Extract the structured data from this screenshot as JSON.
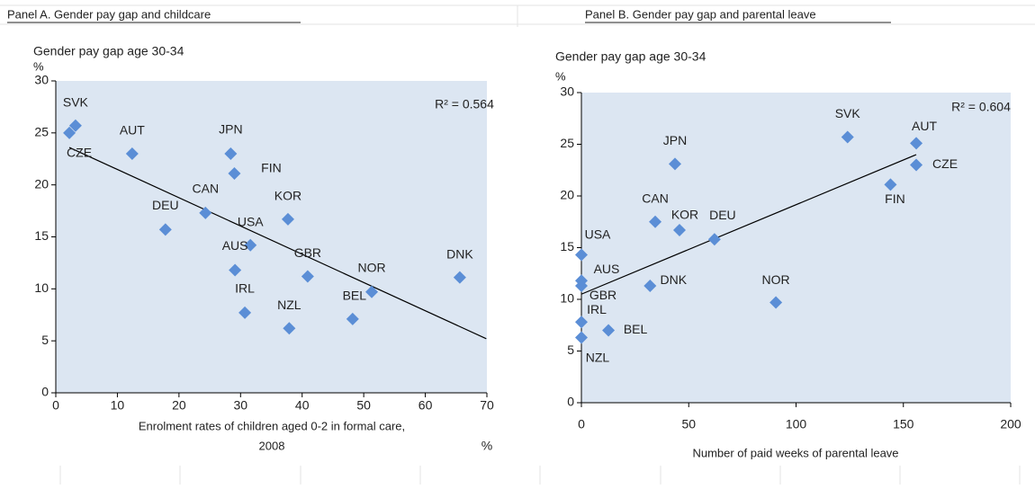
{
  "chart_data": [
    {
      "type": "scatter",
      "title": "Panel A. Gender pay gap and childcare",
      "y_label": "Gender pay gap age 30-34",
      "y_unit": "%",
      "x_label": [
        "Enrolment rates of children aged 0-2 in formal care,",
        "2008"
      ],
      "x_unit": "%",
      "annotation": "R² = 0.564",
      "labels": [
        "SVK",
        "CZE",
        "AUT",
        "JPN",
        "FIN",
        "CAN",
        "KOR",
        "DEU",
        "USA",
        "AUS",
        "GBR",
        "NOR",
        "DNK",
        "IRL",
        "BEL",
        "NZL"
      ],
      "x": [
        3.2,
        2.2,
        12.4,
        28.4,
        29.0,
        24.3,
        37.7,
        17.8,
        31.6,
        29.1,
        40.9,
        51.3,
        65.6,
        30.7,
        48.2,
        37.9
      ],
      "values": [
        25.7,
        25.0,
        23.0,
        23.0,
        21.1,
        17.3,
        16.7,
        15.7,
        14.2,
        11.8,
        11.2,
        9.7,
        11.1,
        7.7,
        7.1,
        6.2
      ],
      "color": "#5b8ed6",
      "trendline": {
        "x": [
          2.2,
          69.9
        ],
        "y": [
          23.6,
          5.2
        ]
      },
      "xlim": [
        0,
        70
      ],
      "xticks": [
        0,
        10,
        20,
        30,
        40,
        50,
        60,
        70
      ],
      "ylim": [
        0,
        30
      ],
      "yticks": [
        0,
        5,
        10,
        15,
        20,
        25,
        30
      ]
    },
    {
      "type": "scatter",
      "title": "Panel B. Gender pay gap and parental leave",
      "y_label": "Gender pay gap age 30-34",
      "y_unit": "%",
      "x_label": [
        "Number of paid weeks of parental leave"
      ],
      "annotation": "R² = 0.604",
      "labels": [
        "SVK",
        "AUT",
        "CZE",
        "FIN",
        "JPN",
        "CAN",
        "KOR",
        "DEU",
        "USA",
        "AUS",
        "GBR",
        "DNK",
        "NOR",
        "IRL",
        "BEL",
        "NZL"
      ],
      "x": [
        124,
        156,
        156,
        144,
        43.6,
        34.4,
        45.7,
        62,
        0,
        0,
        0,
        32,
        90.6,
        0,
        12.6,
        0
      ],
      "values": [
        25.7,
        25.1,
        23.0,
        21.1,
        23.1,
        17.5,
        16.7,
        15.8,
        14.3,
        11.8,
        11.3,
        11.3,
        9.7,
        7.8,
        7.0,
        6.3
      ],
      "color": "#5b8ed6",
      "trendline": {
        "x": [
          0,
          156
        ],
        "y": [
          10.5,
          24.0
        ]
      },
      "xlim": [
        0,
        200
      ],
      "xticks": [
        0,
        50,
        100,
        150,
        200
      ],
      "ylim": [
        0,
        30
      ],
      "yticks": [
        0,
        5,
        10,
        15,
        20,
        25,
        30
      ]
    }
  ]
}
